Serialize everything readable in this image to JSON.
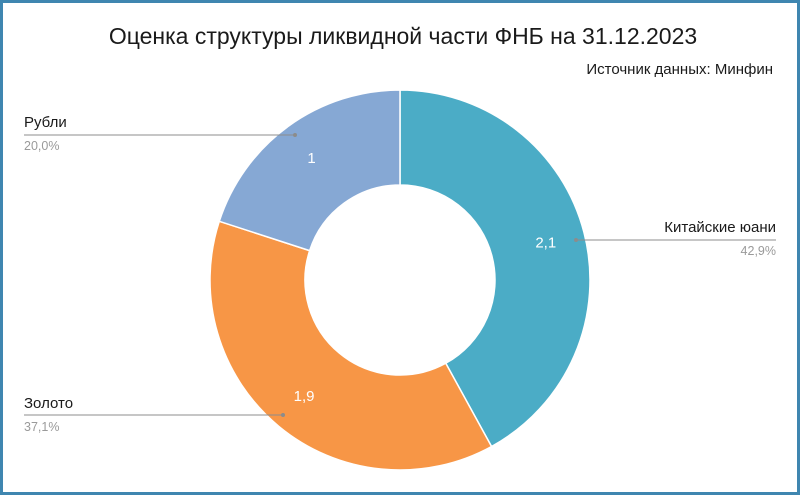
{
  "chart_data": {
    "type": "pie",
    "donut": true,
    "title": "Оценка структуры ликвидной части ФНБ на 31.12.2023",
    "source_note": "Источник данных: Минфин",
    "slices": [
      {
        "name": "Китайские юани",
        "value": 2.1,
        "value_label": "2,1",
        "percent_label": "42,9%",
        "color": "#4bacc6"
      },
      {
        "name": "Золото",
        "value": 1.9,
        "value_label": "1,9",
        "percent_label": "37,1%",
        "color": "#f79646"
      },
      {
        "name": "Рубли",
        "value": 1.0,
        "value_label": "1",
        "percent_label": "20,0%",
        "color": "#86a8d4"
      }
    ],
    "leader_line_color": "#8c8c8c"
  }
}
